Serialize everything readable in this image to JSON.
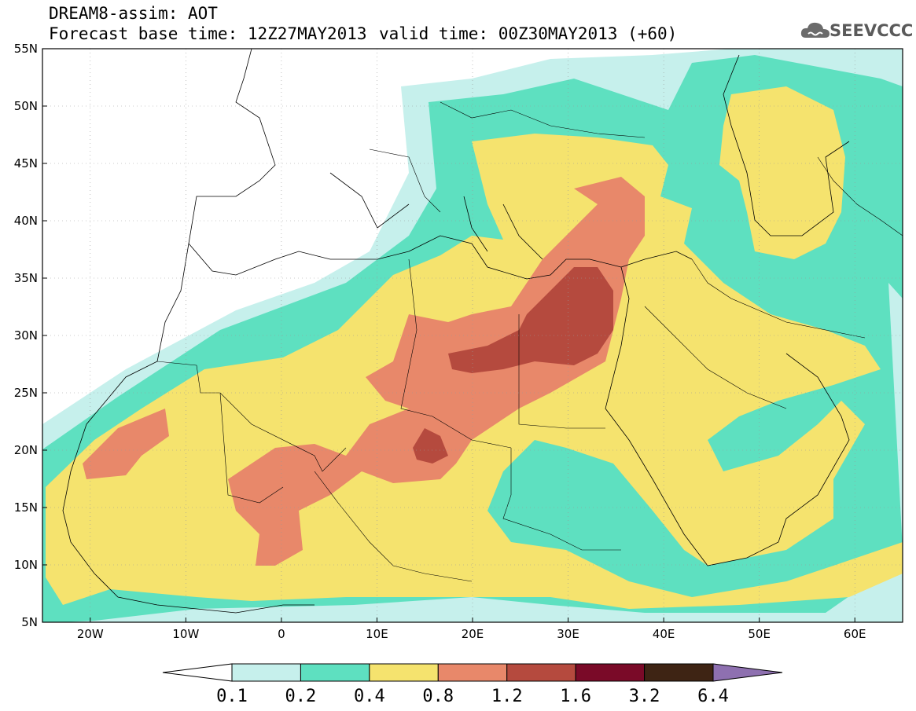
{
  "header": {
    "line1": "DREAM8-assim: AOT",
    "line2": "Forecast base time: 12Z27MAY2013",
    "valid": "valid time: 00Z30MAY2013 (+60)"
  },
  "logo": {
    "text": "SEEVCCC",
    "icon": "cloud-icon"
  },
  "axes": {
    "lat_labels": [
      "55N",
      "50N",
      "45N",
      "40N",
      "35N",
      "30N",
      "25N",
      "20N",
      "15N",
      "10N",
      "5N"
    ],
    "lat_values": [
      55,
      50,
      45,
      40,
      35,
      30,
      25,
      20,
      15,
      10,
      5
    ],
    "lon_labels": [
      "20W",
      "10W",
      "0",
      "10E",
      "20E",
      "30E",
      "40E",
      "50E",
      "60E"
    ],
    "lon_values": [
      -20,
      -10,
      0,
      10,
      20,
      30,
      40,
      50,
      60
    ],
    "lon_range": [
      -25,
      65
    ],
    "lat_range": [
      5,
      55
    ]
  },
  "colorbar": {
    "labels": [
      "0.1",
      "0.2",
      "0.4",
      "0.8",
      "1.2",
      "1.6",
      "3.2",
      "6.4"
    ],
    "colors": [
      "#ffffff",
      "#c6f0ec",
      "#5ee0c0",
      "#f5e36e",
      "#e8886a",
      "#b54a3e",
      "#7a0a28",
      "#3e2414",
      "#8e70b0"
    ]
  },
  "field_colors": {
    "c01": "#c6f0ec",
    "c02": "#5ee0c0",
    "c04": "#f5e36e",
    "c08": "#e8886a",
    "c12": "#b54a3e"
  }
}
